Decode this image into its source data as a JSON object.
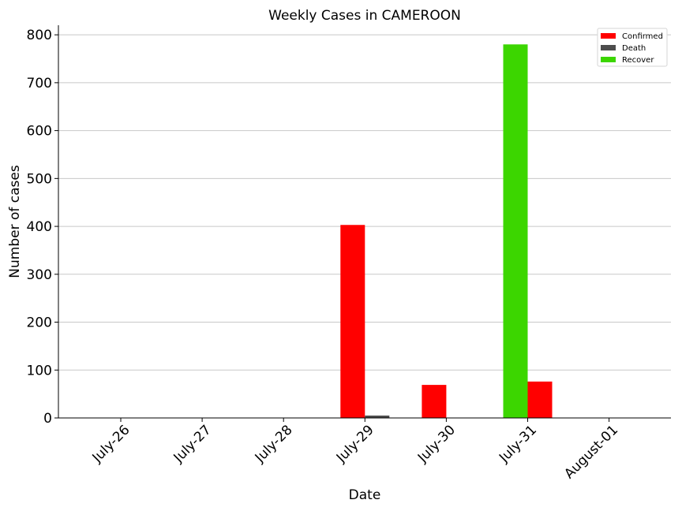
{
  "chart_data": {
    "type": "bar",
    "title": "Weekly Cases in CAMEROON",
    "xlabel": "Date",
    "ylabel": "Number of cases",
    "categories": [
      "July-26",
      "July-27",
      "July-28",
      "July-29",
      "July-30",
      "July-31",
      "August-01"
    ],
    "series": [
      {
        "name": "Confirmed",
        "color": "#ff0000",
        "values": [
          0,
          0,
          0,
          403,
          69,
          76,
          0
        ]
      },
      {
        "name": "Death",
        "color": "#4d4d4d",
        "values": [
          0,
          0,
          0,
          5,
          0,
          0,
          0
        ]
      },
      {
        "name": "Recover",
        "color": "#3cd600",
        "values": [
          0,
          0,
          0,
          0,
          0,
          780,
          0
        ]
      }
    ],
    "ylim": [
      0,
      820
    ],
    "yticks": [
      0,
      100,
      200,
      300,
      400,
      500,
      600,
      700,
      800
    ],
    "grid": "horizontal",
    "legend_position": "top-right"
  }
}
